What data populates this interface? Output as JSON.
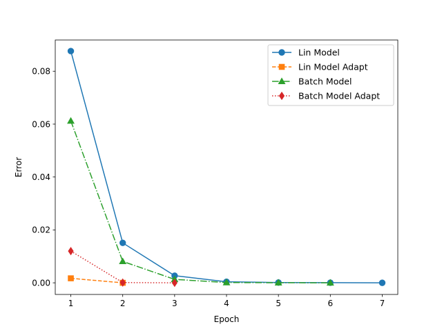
{
  "chart_data": {
    "type": "line",
    "title": "",
    "xlabel": "Epoch",
    "ylabel": "Error",
    "xlim": [
      0.7,
      7.3
    ],
    "ylim": [
      -0.0044,
      0.0918
    ],
    "xticks": [
      1,
      2,
      3,
      4,
      5,
      6,
      7
    ],
    "xtick_labels": [
      "1",
      "2",
      "3",
      "4",
      "5",
      "6",
      "7"
    ],
    "yticks": [
      0.0,
      0.02,
      0.04,
      0.06,
      0.08
    ],
    "ytick_labels": [
      "0.00",
      "0.02",
      "0.04",
      "0.06",
      "0.08"
    ],
    "grid": false,
    "legend_position": "top-right",
    "series": [
      {
        "name": "Lin Model",
        "color": "#1f77b4",
        "marker": "circle",
        "line_style": "solid",
        "x": [
          1,
          2,
          3,
          4,
          5,
          6,
          7
        ],
        "y": [
          0.0876,
          0.0151,
          0.0027,
          0.0004,
          0.0001,
          5e-05,
          0.0
        ]
      },
      {
        "name": "Lin Model Adapt",
        "color": "#ff7f0e",
        "marker": "square",
        "line_style": "dashed",
        "x": [
          1,
          2
        ],
        "y": [
          0.0017,
          0.0
        ]
      },
      {
        "name": "Batch Model",
        "color": "#2ca02c",
        "marker": "triangle",
        "line_style": "dashdot",
        "x": [
          1,
          2,
          3,
          4,
          5,
          6
        ],
        "y": [
          0.0612,
          0.0081,
          0.0013,
          0.0001,
          3e-05,
          0.0
        ]
      },
      {
        "name": "Batch Model Adapt",
        "color": "#d62728",
        "marker": "diamond",
        "line_style": "dotted",
        "x": [
          1,
          2,
          3
        ],
        "y": [
          0.012,
          0.0001,
          0.0
        ]
      }
    ]
  }
}
